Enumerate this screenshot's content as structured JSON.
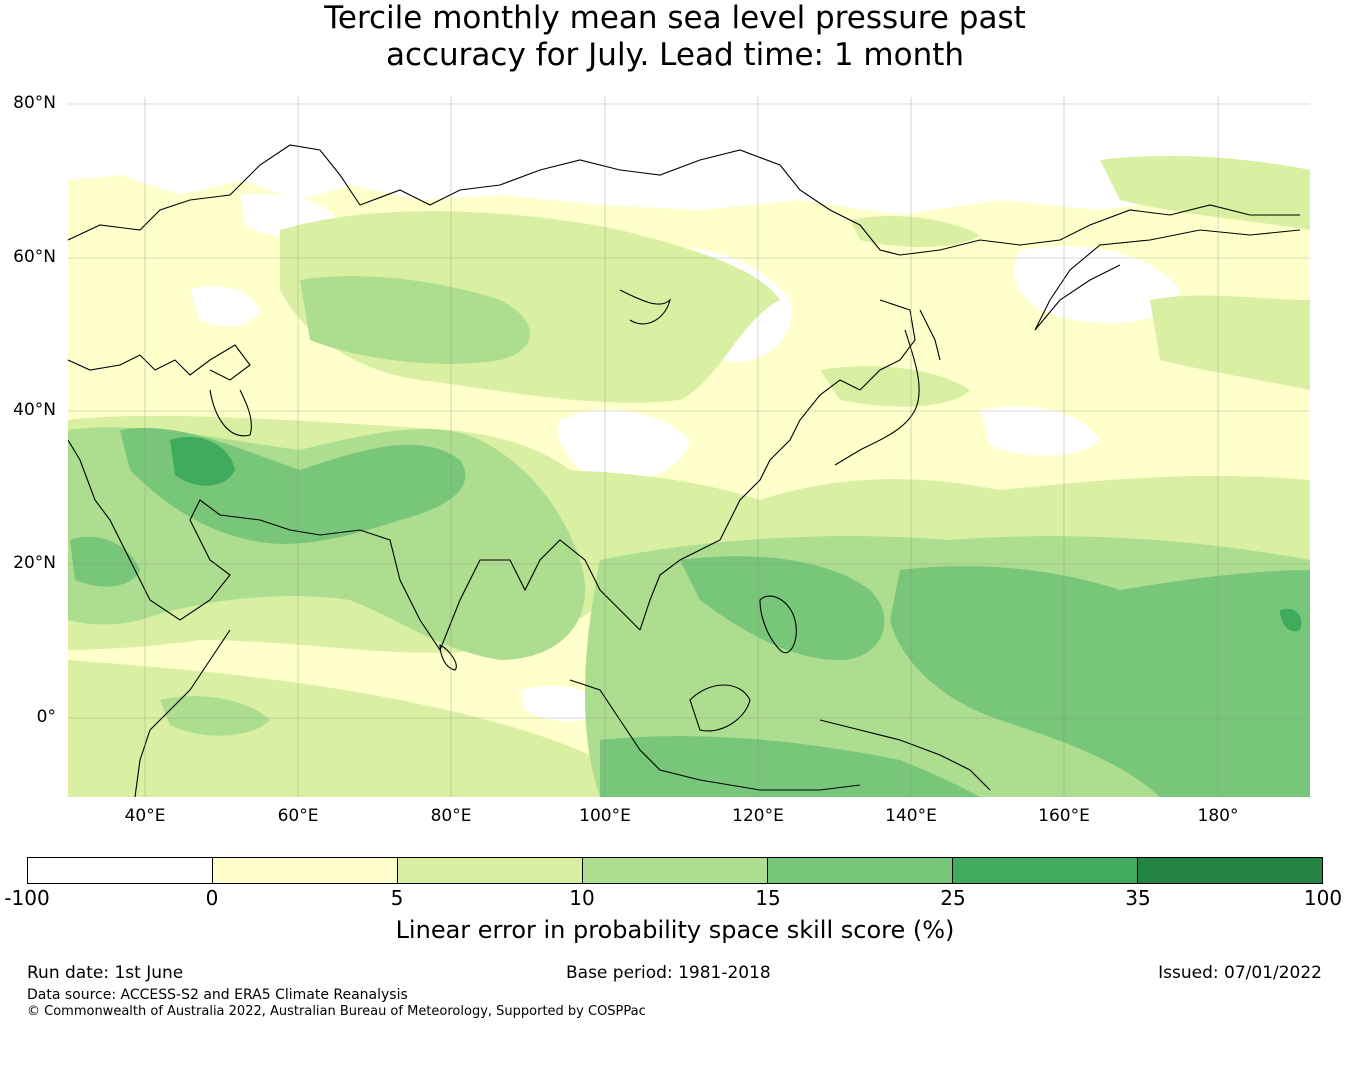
{
  "title": {
    "line1": "Tercile monthly mean sea level pressure past",
    "line2": "accuracy for July. Lead time: 1 month"
  },
  "map": {
    "lat_labels": [
      "80°N",
      "60°N",
      "40°N",
      "20°N",
      "0°"
    ],
    "lon_labels": [
      "40°E",
      "60°E",
      "80°E",
      "100°E",
      "120°E",
      "140°E",
      "160°E",
      "180°"
    ],
    "extent": {
      "lon": [
        30,
        192
      ],
      "lat": [
        -10,
        81
      ]
    }
  },
  "colorbar": {
    "ticks": [
      "-100",
      "0",
      "5",
      "10",
      "15",
      "25",
      "35",
      "100"
    ],
    "colors": [
      "#ffffff",
      "#ffffcc",
      "#d9f0a3",
      "#addd8e",
      "#78c679",
      "#41ab5d",
      "#238443"
    ],
    "label": "Linear error in probability space skill score (%)"
  },
  "footer": {
    "run_date": "Run date: 1st June",
    "base_period": "Base period: 1981-2018",
    "issued": "Issued: 07/01/2022",
    "data_source": "Data source: ACCESS-S2 and ERA5 Climate Reanalysis",
    "copyright": "© Commonwealth of Australia 2022, Australian Bureau of Meteorology, Supported by COSPPac"
  }
}
